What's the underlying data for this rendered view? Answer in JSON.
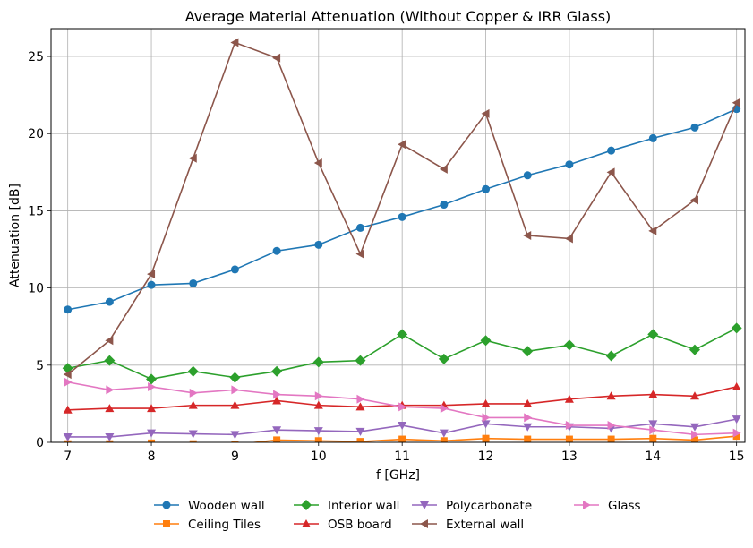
{
  "chart_data": {
    "type": "line",
    "title": "Average Material Attenuation (Without Copper & IRR Glass)",
    "xlabel": "f [GHz]",
    "ylabel": "Attenuation [dB]",
    "xlim": [
      6.8,
      15.1
    ],
    "ylim": [
      0,
      26.8
    ],
    "xticks": [
      7,
      8,
      9,
      10,
      11,
      12,
      13,
      14,
      15
    ],
    "yticks": [
      0,
      5,
      10,
      15,
      20,
      25
    ],
    "grid": true,
    "legend_position": "bottom-center",
    "x": [
      7,
      7.5,
      8,
      8.5,
      9,
      9.5,
      10,
      10.5,
      11,
      11.5,
      12,
      12.5,
      13,
      13.5,
      14,
      14.5,
      15
    ],
    "series": [
      {
        "name": "Wooden wall",
        "color": "#1f77b4",
        "marker": "circle",
        "values": [
          8.6,
          9.1,
          10.2,
          10.3,
          11.2,
          12.4,
          12.8,
          13.9,
          14.6,
          15.4,
          16.4,
          17.3,
          18.0,
          18.9,
          19.7,
          20.4,
          21.6
        ]
      },
      {
        "name": "Ceiling Tiles",
        "color": "#ff7f0e",
        "marker": "square",
        "values": [
          -0.1,
          -0.1,
          -0.05,
          -0.1,
          -0.15,
          0.15,
          0.1,
          0.05,
          0.2,
          0.1,
          0.25,
          0.2,
          0.2,
          0.2,
          0.25,
          0.15,
          0.4
        ]
      },
      {
        "name": "Interior wall",
        "color": "#2ca02c",
        "marker": "diamond",
        "values": [
          4.8,
          5.3,
          4.1,
          4.6,
          4.2,
          4.6,
          5.2,
          5.3,
          7.0,
          5.4,
          6.6,
          5.9,
          6.3,
          5.6,
          7.0,
          6.0,
          7.4
        ]
      },
      {
        "name": "OSB board",
        "color": "#d62728",
        "marker": "triangle-up",
        "values": [
          2.1,
          2.2,
          2.2,
          2.4,
          2.4,
          2.7,
          2.4,
          2.3,
          2.4,
          2.4,
          2.5,
          2.5,
          2.8,
          3.0,
          3.1,
          3.0,
          3.6
        ]
      },
      {
        "name": "Polycarbonate",
        "color": "#9467bd",
        "marker": "triangle-down",
        "values": [
          0.35,
          0.35,
          0.6,
          0.55,
          0.5,
          0.8,
          0.75,
          0.7,
          1.1,
          0.6,
          1.2,
          1.0,
          1.0,
          0.9,
          1.2,
          1.0,
          1.5
        ]
      },
      {
        "name": "External wall",
        "color": "#8c564b",
        "marker": "triangle-left",
        "values": [
          4.4,
          6.6,
          10.9,
          18.4,
          25.9,
          24.9,
          18.1,
          12.2,
          19.3,
          17.7,
          21.3,
          13.4,
          13.2,
          17.5,
          13.7,
          15.7,
          22.0
        ]
      },
      {
        "name": "Glass",
        "color": "#e377c2",
        "marker": "triangle-right",
        "values": [
          3.9,
          3.4,
          3.6,
          3.2,
          3.4,
          3.1,
          3.0,
          2.8,
          2.3,
          2.2,
          1.6,
          1.6,
          1.1,
          1.1,
          0.8,
          0.5,
          0.6
        ]
      }
    ]
  }
}
